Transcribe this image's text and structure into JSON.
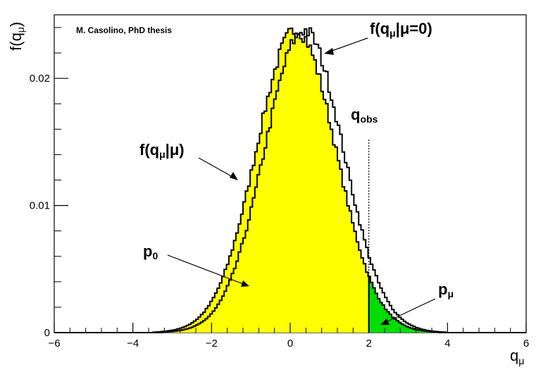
{
  "chart_data": {
    "type": "area",
    "credit": "M. Casolino, PhD thesis",
    "xlabel": {
      "main": "q",
      "sub": "μ"
    },
    "ylabel": {
      "pre": "f(q",
      "sub": "μ",
      "post": ")"
    },
    "xlim": [
      -6,
      6
    ],
    "ylim": [
      0,
      0.025
    ],
    "x_ticks": [
      -6,
      -4,
      -2,
      0,
      2,
      4,
      6
    ],
    "x_tick_labels": [
      "−6",
      "−4",
      "−2",
      "0",
      "2",
      "4",
      "6"
    ],
    "y_ticks": [
      0,
      0.01,
      0.02
    ],
    "y_tick_labels": [
      "0",
      "0.01",
      "0.02"
    ],
    "q_obs_value": 2.0,
    "bin_width": 0.06,
    "series": [
      {
        "id": "f_mu0",
        "mean": 0.15,
        "sigma": 1.01,
        "peak": 0.0238,
        "fill_left": "#ffff00",
        "fill_right": "#00dd00",
        "line": "#000000"
      },
      {
        "id": "f_mu",
        "mean": 0.35,
        "sigma": 1.0,
        "peak": 0.0238,
        "fill": "none",
        "line": "#000000"
      }
    ],
    "annotations": {
      "f_mu0": {
        "pre": "f(q",
        "sub": "μ",
        "post": "|μ=0)"
      },
      "f_mu": {
        "pre": "f(q",
        "sub": "μ",
        "post": "|μ)"
      },
      "q_obs": {
        "main": "q",
        "sub": "obs"
      },
      "p0": {
        "main": "p",
        "sub": "0"
      },
      "p_mu": {
        "main": "p",
        "sub": "μ"
      }
    }
  }
}
